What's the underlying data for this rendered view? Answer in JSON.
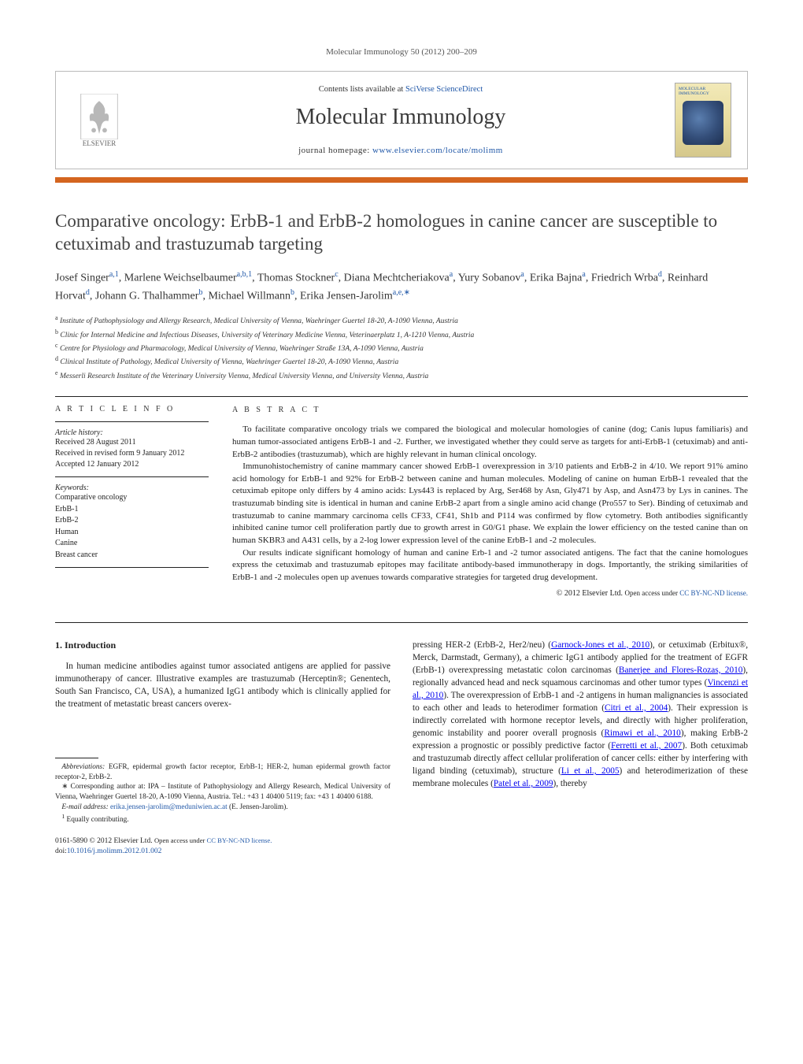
{
  "running_header": "Molecular Immunology 50 (2012) 200–209",
  "header": {
    "contents_prefix": "Contents lists available at ",
    "contents_link": "SciVerse ScienceDirect",
    "journal_title": "Molecular Immunology",
    "homepage_prefix": "journal homepage: ",
    "homepage_link": "www.elsevier.com/locate/molimm",
    "publisher_name": "ELSEVIER",
    "cover_title": "MOLECULAR IMMUNOLOGY"
  },
  "colors": {
    "accent_bar": "#d4651f",
    "link": "#2158a8",
    "text": "#222222",
    "muted": "#555555"
  },
  "article": {
    "title": "Comparative oncology: ErbB-1 and ErbB-2 homologues in canine cancer are susceptible to cetuximab and trastuzumab targeting",
    "authors_html": "Josef Singer<sup class='sup'>a,1</sup>, Marlene Weichselbaumer<sup class='sup'>a,b,1</sup>, Thomas Stockner<sup class='sup'>c</sup>, Diana Mechtcheriakova<sup class='sup'>a</sup>, Yury Sobanov<sup class='sup'>a</sup>, Erika Bajna<sup class='sup'>a</sup>, Friedrich Wrba<sup class='sup'>d</sup>, Reinhard Horvat<sup class='sup'>d</sup>, Johann G. Thalhammer<sup class='sup'>b</sup>, Michael Willmann<sup class='sup'>b</sup>, Erika Jensen-Jarolim<sup class='sup'>a,e,∗</sup>",
    "affiliations": [
      {
        "key": "a",
        "text": "Institute of Pathophysiology and Allergy Research, Medical University of Vienna, Waehringer Guertel 18-20, A-1090 Vienna, Austria"
      },
      {
        "key": "b",
        "text": "Clinic for Internal Medicine and Infectious Diseases, University of Veterinary Medicine Vienna, Veterinaerplatz 1, A-1210 Vienna, Austria"
      },
      {
        "key": "c",
        "text": "Centre for Physiology and Pharmacology, Medical University of Vienna, Waehringer Straße 13A, A-1090 Vienna, Austria"
      },
      {
        "key": "d",
        "text": "Clinical Institute of Pathology, Medical University of Vienna, Waehringer Guertel 18-20, A-1090 Vienna, Austria"
      },
      {
        "key": "e",
        "text": "Messerli Research Institute of the Veterinary University Vienna, Medical University Vienna, and University Vienna, Austria"
      }
    ]
  },
  "meta": {
    "info_label": "a r t i c l e   i n f o",
    "history_head": "Article history:",
    "history": {
      "received": "Received 28 August 2011",
      "revised": "Received in revised form 9 January 2012",
      "accepted": "Accepted 12 January 2012"
    },
    "keywords_head": "Keywords:",
    "keywords": [
      "Comparative oncology",
      "ErbB-1",
      "ErbB-2",
      "Human",
      "Canine",
      "Breast cancer"
    ]
  },
  "abstract": {
    "label": "a b s t r a c t",
    "paragraphs": [
      "To facilitate comparative oncology trials we compared the biological and molecular homologies of canine (dog; Canis lupus familiaris) and human tumor-associated antigens ErbB-1 and -2. Further, we investigated whether they could serve as targets for anti-ErbB-1 (cetuximab) and anti-ErbB-2 antibodies (trastuzumab), which are highly relevant in human clinical oncology.",
      "Immunohistochemistry of canine mammary cancer showed ErbB-1 overexpression in 3/10 patients and ErbB-2 in 4/10. We report 91% amino acid homology for ErbB-1 and 92% for ErbB-2 between canine and human molecules. Modeling of canine on human ErbB-1 revealed that the cetuximab epitope only differs by 4 amino acids: Lys443 is replaced by Arg, Ser468 by Asn, Gly471 by Asp, and Asn473 by Lys in canines. The trastuzumab binding site is identical in human and canine ErbB-2 apart from a single amino acid change (Pro557 to Ser). Binding of cetuximab and trastuzumab to canine mammary carcinoma cells CF33, CF41, Sh1b and P114 was confirmed by flow cytometry. Both antibodies significantly inhibited canine tumor cell proliferation partly due to growth arrest in G0/G1 phase. We explain the lower efficiency on the tested canine than on human SKBR3 and A431 cells, by a 2-log lower expression level of the canine ErbB-1 and -2 molecules.",
      "Our results indicate significant homology of human and canine Erb-1 and -2 tumor associated antigens. The fact that the canine homologues express the cetuximab and trastuzumab epitopes may facilitate antibody-based immunotherapy in dogs. Importantly, the striking similarities of ErbB-1 and -2 molecules open up avenues towards comparative strategies for targeted drug development."
    ],
    "copyright": "© 2012 Elsevier Ltd. ",
    "copyright_open": "Open access under ",
    "copyright_license": "CC BY-NC-ND license."
  },
  "body": {
    "section_heading": "1.  Introduction",
    "left_para": "In human medicine antibodies against tumor associated antigens are applied for passive immunotherapy of cancer. Illustrative examples are trastuzumab (Herceptin®; Genentech, South San Francisco, CA, USA), a humanized IgG1 antibody which is clinically applied for the treatment of metastatic breast cancers overex-",
    "right_para_html": "pressing HER-2 (ErbB-2, Her2/neu) (<a href='#'>Garnock-Jones et al., 2010</a>), or cetuximab (Erbitux®, Merck, Darmstadt, Germany), a chimeric IgG1 antibody applied for the treatment of EGFR (ErbB-1) overexpressing metastatic colon carcinomas (<a href='#'>Banerjee and Flores-Rozas, 2010</a>), regionally advanced head and neck squamous carcinomas and other tumor types (<a href='#'>Vincenzi et al., 2010</a>). The overexpression of ErbB-1 and -2 antigens in human malignancies is associated to each other and leads to heterodimer formation (<a href='#'>Citri et al., 2004</a>). Their expression is indirectly correlated with hormone receptor levels, and directly with higher proliferation, genomic instability and poorer overall prognosis (<a href='#'>Rimawi et al., 2010</a>), making ErbB-2 expression a prognostic or possibly predictive factor (<a href='#'>Ferretti et al., 2007</a>). Both cetuximab and trastuzumab directly affect cellular proliferation of cancer cells: either by interfering with ligand binding (cetuximab), structure (<a href='#'>Li et al., 2005</a>) and heterodimerization of these membrane molecules (<a href='#'>Patel et al., 2009</a>), thereby"
  },
  "footnotes": {
    "abbrev_label": "Abbreviations:",
    "abbrev_text": " EGFR, epidermal growth factor receptor, ErbB-1; HER-2, human epidermal growth factor receptor-2, ErbB-2.",
    "corr_symbol": "∗",
    "corr_text": " Corresponding author at: IPA – Institute of Pathophysiology and Allergy Research, Medical University of Vienna, Waehringer Guertel 18-20, A-1090 Vienna, Austria. Tel.: +43 1 40400 5119; fax: +43 1 40400 6188.",
    "email_label": "E-mail address: ",
    "email": "erika.jensen-jarolim@meduniwien.ac.at",
    "email_suffix": " (E. Jensen-Jarolim).",
    "equal_symbol": "1",
    "equal_text": " Equally contributing."
  },
  "footer": {
    "line1_prefix": "0161-5890 © 2012 Elsevier Ltd. ",
    "line1_open": "Open access under ",
    "line1_license": "CC BY-NC-ND license.",
    "doi_prefix": "doi:",
    "doi": "10.1016/j.molimm.2012.01.002"
  }
}
